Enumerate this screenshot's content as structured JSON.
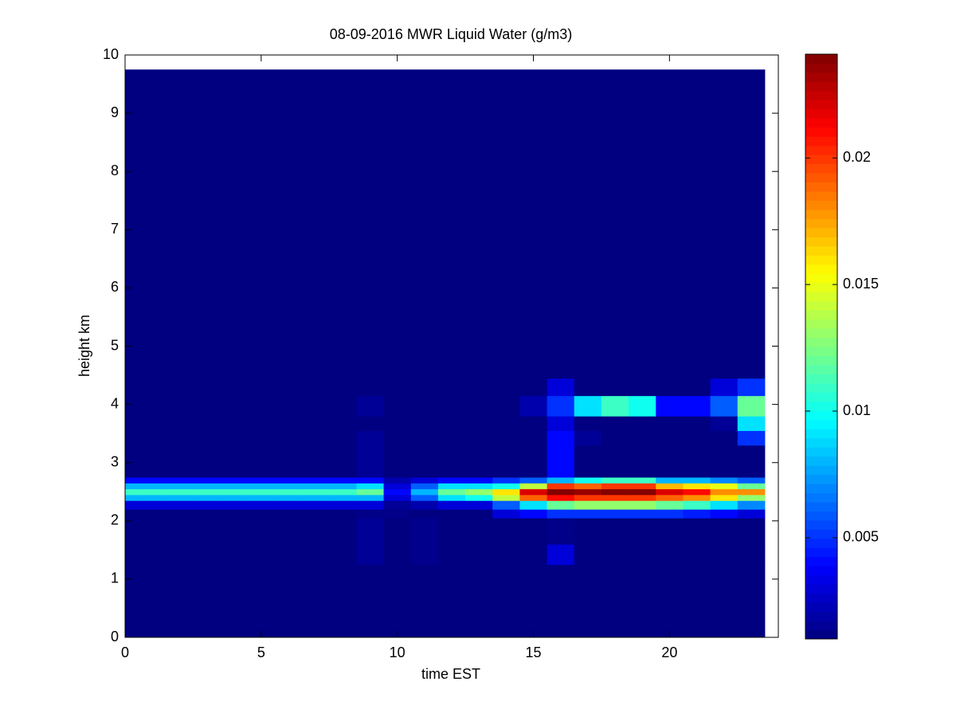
{
  "chart_data": {
    "type": "heatmap",
    "title": "08-09-2016 MWR Liquid Water (g/m3)",
    "x_label": "time EST",
    "y_label": "height km",
    "colormap": "jet",
    "x": [
      0,
      0.5,
      1.5,
      2.5,
      3.5,
      4.5,
      5.5,
      6.5,
      7.5,
      8.5,
      9.5,
      10.5,
      11.5,
      12.5,
      13.5,
      14.5,
      15.5,
      16.5,
      17.5,
      18.5,
      19.5,
      20.5,
      21.5,
      22.5,
      23.5
    ],
    "y": [
      0,
      1.25,
      1.6,
      2.05,
      2.2,
      2.35,
      2.45,
      2.55,
      2.65,
      2.75,
      3.3,
      3.55,
      3.8,
      4.15,
      4.45,
      9.75
    ],
    "values": [
      [
        0.001,
        0.001,
        0.001,
        0.001,
        0.001,
        0.001,
        0.001,
        0.001,
        0.001,
        0.001,
        0.001,
        0.001,
        0.001,
        0.001,
        0.001,
        0.001,
        0.001,
        0.001,
        0.001,
        0.001,
        0.001,
        0.001,
        0.001,
        0.001
      ],
      [
        0.001,
        0.001,
        0.001,
        0.001,
        0.001,
        0.001,
        0.001,
        0.001,
        0.001,
        0.0015,
        0.001,
        0.0013,
        0.001,
        0.001,
        0.001,
        0.001,
        0.003,
        0.001,
        0.001,
        0.001,
        0.001,
        0.001,
        0.001,
        0.001
      ],
      [
        0.001,
        0.001,
        0.001,
        0.001,
        0.001,
        0.001,
        0.001,
        0.001,
        0.001,
        0.0015,
        0.001,
        0.0013,
        0.001,
        0.001,
        0.001,
        0.001,
        0.0012,
        0.001,
        0.001,
        0.001,
        0.001,
        0.001,
        0.001,
        0.001
      ],
      [
        0.001,
        0.001,
        0.001,
        0.001,
        0.001,
        0.001,
        0.001,
        0.001,
        0.001,
        0.0012,
        0.0012,
        0.001,
        0.001,
        0.001,
        0.003,
        0.004,
        0.005,
        0.005,
        0.005,
        0.005,
        0.005,
        0.0045,
        0.004,
        0.003
      ],
      [
        0.003,
        0.003,
        0.003,
        0.003,
        0.003,
        0.003,
        0.003,
        0.003,
        0.003,
        0.003,
        0.0015,
        0.002,
        0.003,
        0.003,
        0.006,
        0.009,
        0.012,
        0.013,
        0.013,
        0.013,
        0.012,
        0.011,
        0.009,
        0.007
      ],
      [
        0.008,
        0.008,
        0.008,
        0.008,
        0.008,
        0.008,
        0.008,
        0.008,
        0.008,
        0.008,
        0.003,
        0.006,
        0.009,
        0.01,
        0.014,
        0.019,
        0.021,
        0.02,
        0.02,
        0.02,
        0.019,
        0.018,
        0.016,
        0.013
      ],
      [
        0.011,
        0.011,
        0.011,
        0.011,
        0.011,
        0.011,
        0.011,
        0.011,
        0.011,
        0.012,
        0.004,
        0.008,
        0.012,
        0.013,
        0.016,
        0.022,
        0.024,
        0.0235,
        0.024,
        0.024,
        0.022,
        0.021,
        0.018,
        0.018
      ],
      [
        0.008,
        0.008,
        0.008,
        0.008,
        0.008,
        0.008,
        0.008,
        0.008,
        0.008,
        0.009,
        0.003,
        0.006,
        0.009,
        0.009,
        0.01,
        0.014,
        0.02,
        0.019,
        0.02,
        0.02,
        0.017,
        0.016,
        0.015,
        0.012
      ],
      [
        0.004,
        0.004,
        0.004,
        0.004,
        0.004,
        0.004,
        0.004,
        0.004,
        0.004,
        0.004,
        0.002,
        0.003,
        0.004,
        0.004,
        0.005,
        0.006,
        0.008,
        0.01,
        0.011,
        0.011,
        0.008,
        0.008,
        0.007,
        0.006
      ],
      [
        0.001,
        0.001,
        0.001,
        0.001,
        0.001,
        0.001,
        0.001,
        0.001,
        0.001,
        0.0015,
        0.001,
        0.001,
        0.001,
        0.001,
        0.001,
        0.001,
        0.004,
        0.001,
        0.001,
        0.001,
        0.001,
        0.001,
        0.001,
        0.001
      ],
      [
        0.001,
        0.001,
        0.001,
        0.001,
        0.001,
        0.001,
        0.001,
        0.001,
        0.001,
        0.0015,
        0.001,
        0.001,
        0.001,
        0.001,
        0.001,
        0.001,
        0.004,
        0.0015,
        0.001,
        0.001,
        0.001,
        0.001,
        0.001,
        0.005
      ],
      [
        0.001,
        0.001,
        0.001,
        0.001,
        0.001,
        0.001,
        0.001,
        0.001,
        0.001,
        0.001,
        0.001,
        0.001,
        0.001,
        0.001,
        0.001,
        0.001,
        0.003,
        0.001,
        0.001,
        0.001,
        0.001,
        0.001,
        0.0015,
        0.009
      ],
      [
        0.001,
        0.001,
        0.001,
        0.001,
        0.001,
        0.001,
        0.001,
        0.001,
        0.001,
        0.0015,
        0.001,
        0.001,
        0.001,
        0.001,
        0.001,
        0.002,
        0.005,
        0.009,
        0.011,
        0.01,
        0.004,
        0.004,
        0.006,
        0.012
      ],
      [
        0.001,
        0.001,
        0.001,
        0.001,
        0.001,
        0.001,
        0.001,
        0.001,
        0.001,
        0.001,
        0.001,
        0.001,
        0.001,
        0.001,
        0.001,
        0.001,
        0.003,
        0.001,
        0.001,
        0.001,
        0.001,
        0.001,
        0.003,
        0.005
      ],
      [
        0.001,
        0.001,
        0.001,
        0.001,
        0.001,
        0.001,
        0.001,
        0.001,
        0.001,
        0.001,
        0.001,
        0.001,
        0.001,
        0.001,
        0.001,
        0.001,
        0.001,
        0.001,
        0.001,
        0.001,
        0.001,
        0.001,
        0.001,
        0.001
      ]
    ],
    "xlim": [
      0,
      24
    ],
    "xticks": [
      0,
      5,
      10,
      15,
      20
    ],
    "ylim": [
      0,
      10
    ],
    "yticks": [
      0,
      1,
      2,
      3,
      4,
      5,
      6,
      7,
      8,
      9,
      10
    ],
    "clim": [
      0.001,
      0.0241
    ],
    "cticks": [
      0.005,
      0.01,
      0.015,
      0.02
    ]
  }
}
